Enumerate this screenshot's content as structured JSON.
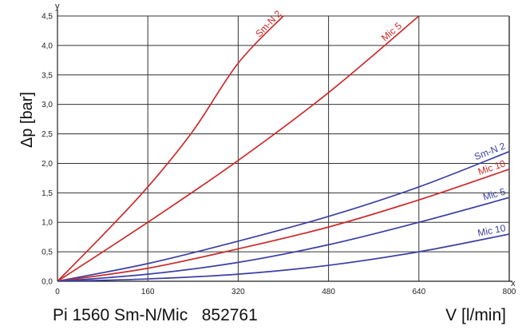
{
  "chart_data": {
    "type": "line",
    "title": "",
    "caption_left": "Pi 1560 Sm-N/Mic   852761",
    "xlabel": "V [l/min]",
    "ylabel": "Δp [bar]",
    "x_axis_letter": "x",
    "y_axis_letter": "y",
    "xlim": [
      0,
      800
    ],
    "ylim": [
      0,
      4.5
    ],
    "x_ticks": [
      "0",
      "160",
      "320",
      "480",
      "640",
      "800"
    ],
    "y_ticks": [
      "0,0",
      "0,5",
      "1,0",
      "1,5",
      "2,0",
      "2,5",
      "3,0",
      "3,5",
      "4,0",
      "4,5"
    ],
    "grid": true,
    "series": [
      {
        "name": "Sm-N 2",
        "color": "#cc2a2a",
        "x": [
          0,
          80,
          160,
          240,
          320,
          400
        ],
        "y": [
          0,
          0.78,
          1.6,
          2.55,
          3.7,
          4.5
        ]
      },
      {
        "name": "Mic 5",
        "color": "#cc2a2a",
        "x": [
          0,
          160,
          320,
          480,
          640
        ],
        "y": [
          0,
          1.0,
          2.05,
          3.2,
          4.5
        ]
      },
      {
        "name": "Sm-N 2",
        "color": "#3b3fa3",
        "x": [
          0,
          160,
          320,
          480,
          640,
          800
        ],
        "y": [
          0,
          0.3,
          0.68,
          1.1,
          1.6,
          2.2
        ]
      },
      {
        "name": "Mic 10",
        "color": "#cc2a2a",
        "x": [
          0,
          160,
          320,
          480,
          640,
          800
        ],
        "y": [
          0,
          0.22,
          0.55,
          0.92,
          1.38,
          1.9
        ]
      },
      {
        "name": "Mic 5",
        "color": "#3b3fa3",
        "x": [
          0,
          160,
          320,
          480,
          640,
          800
        ],
        "y": [
          0,
          0.12,
          0.32,
          0.62,
          1.0,
          1.42
        ]
      },
      {
        "name": "Mic 10",
        "color": "#3b3fa3",
        "x": [
          0,
          160,
          320,
          480,
          640,
          800
        ],
        "y": [
          0,
          0.04,
          0.12,
          0.27,
          0.5,
          0.8
        ]
      }
    ]
  }
}
